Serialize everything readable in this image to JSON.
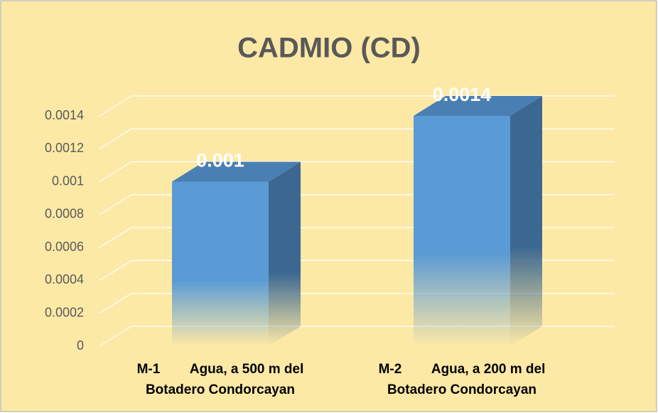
{
  "chart_data": {
    "type": "bar3d",
    "title": "CADMIO (CD)",
    "categories": [
      "M-1        Agua, a 500 m del\nBotadero Condorcayan",
      "M-2        Agua, a 200 m del\nBotadero Condorcayan"
    ],
    "values": [
      0.001,
      0.0014
    ],
    "color": "#5b9bd5",
    "ylim": [
      0,
      0.0014
    ],
    "yticks": [
      0,
      0.0002,
      0.0004,
      0.0006,
      0.0008,
      0.001,
      0.0012,
      0.0014
    ],
    "grid": true
  }
}
